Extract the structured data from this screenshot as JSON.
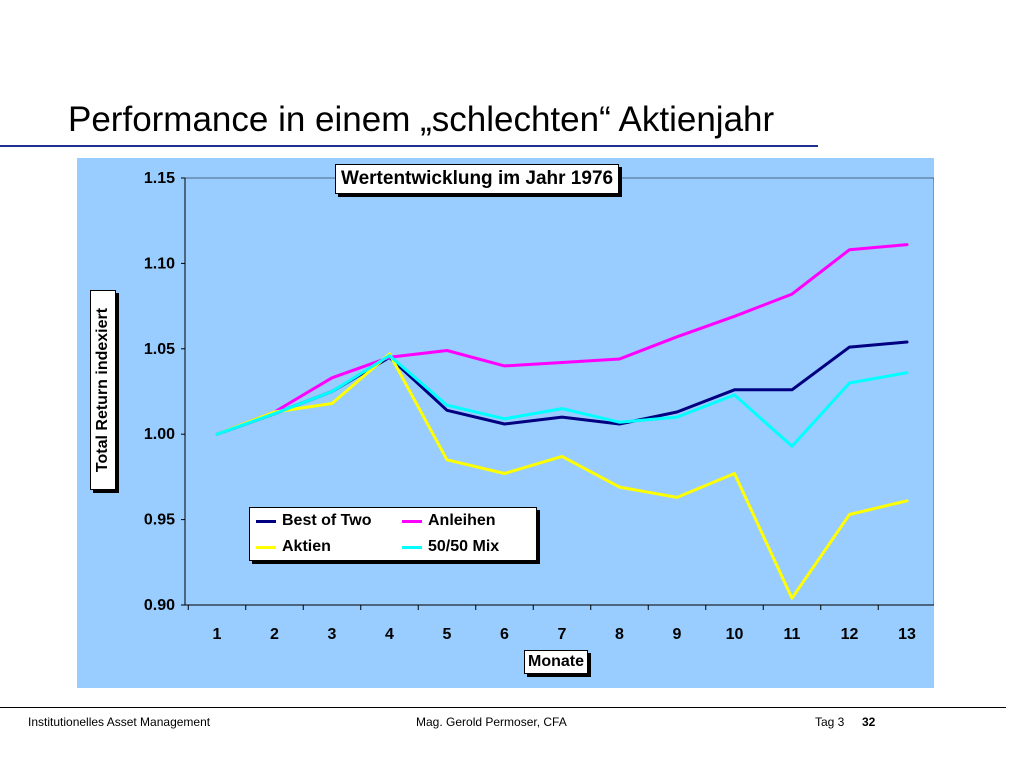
{
  "slide": {
    "title": "Performance in einem „schlechten“ Aktienjahr"
  },
  "footer": {
    "left": "Institutionelles Asset Management",
    "center": "Mag. Gerold Permoser, CFA",
    "day": "Tag 3",
    "page": "32"
  },
  "chart_data": {
    "type": "line",
    "title": "Wertentwicklung im Jahr 1976",
    "xlabel": "Monate",
    "ylabel": "Total Return indexiert",
    "x": [
      "1",
      "2",
      "3",
      "4",
      "5",
      "6",
      "7",
      "8",
      "9",
      "10",
      "11",
      "12",
      "13"
    ],
    "ylim": [
      0.9,
      1.15
    ],
    "yticks": [
      "0.90",
      "0.95",
      "1.00",
      "1.05",
      "1.10",
      "1.15"
    ],
    "grid": false,
    "legend_position": "bottom-left",
    "series": [
      {
        "name": "Best of Two",
        "color": "#000080",
        "values": [
          1.0,
          1.012,
          1.025,
          1.045,
          1.014,
          1.006,
          1.01,
          1.006,
          1.013,
          1.026,
          1.026,
          1.051,
          1.054
        ]
      },
      {
        "name": "Anleihen",
        "color": "#ff00ff",
        "values": [
          1.0,
          1.013,
          1.033,
          1.045,
          1.049,
          1.04,
          1.042,
          1.044,
          1.057,
          1.069,
          1.082,
          1.108,
          1.111
        ]
      },
      {
        "name": "Aktien",
        "color": "#ffff00",
        "values": [
          1.0,
          1.013,
          1.018,
          1.047,
          0.985,
          0.977,
          0.987,
          0.969,
          0.963,
          0.977,
          0.904,
          0.953,
          0.961
        ]
      },
      {
        "name": "50/50 Mix",
        "color": "#00ffff",
        "values": [
          1.0,
          1.012,
          1.025,
          1.046,
          1.017,
          1.009,
          1.015,
          1.007,
          1.01,
          1.023,
          0.993,
          1.03,
          1.036
        ]
      }
    ]
  }
}
